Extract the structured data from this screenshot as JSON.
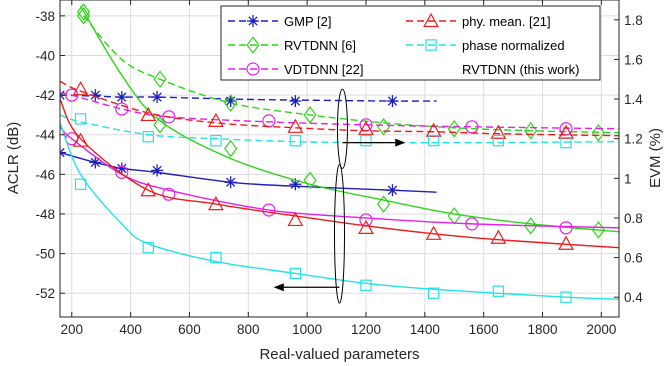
{
  "chart_data": {
    "type": "line",
    "xlabel": "Real-valued parameters",
    "ylabel_left": "ACLR (dB)",
    "ylabel_right": "EVM (%)",
    "xlim": [
      160,
      2060
    ],
    "ylim_left": [
      -53.2,
      -37.2
    ],
    "ylim_right": [
      0.3,
      1.9
    ],
    "xticks": [
      200,
      400,
      600,
      800,
      1000,
      1200,
      1400,
      1600,
      1800,
      2000
    ],
    "yticks_left": [
      -38,
      -40,
      -42,
      -44,
      -46,
      -48,
      -50,
      -52
    ],
    "yticks_right": [
      1.8,
      1.6,
      1.4,
      1.2,
      1,
      0.8,
      0.6,
      0.4
    ],
    "grid": true,
    "legend_position": "top-right",
    "series": [
      {
        "name": "GMP  [2]",
        "color": "#1f1fbf",
        "marker": "asterisk",
        "aclr_solid": [
          [
            160,
            -44.9
          ],
          [
            280,
            -45.4
          ],
          [
            370,
            -45.7
          ],
          [
            490,
            -45.9
          ],
          [
            740,
            -46.4
          ],
          [
            960,
            -46.6
          ],
          [
            1290,
            -46.8
          ],
          [
            1440,
            -46.9
          ]
        ],
        "aclr_markers": [
          [
            160,
            -44.9
          ],
          [
            280,
            -45.4
          ],
          [
            370,
            -45.7
          ],
          [
            490,
            -45.8
          ],
          [
            740,
            -46.4
          ],
          [
            960,
            -46.5
          ],
          [
            1290,
            -46.8
          ]
        ],
        "evm_dashed": [
          [
            160,
            1.42
          ],
          [
            280,
            1.415
          ],
          [
            370,
            1.41
          ],
          [
            490,
            1.41
          ],
          [
            740,
            1.4
          ],
          [
            960,
            1.395
          ],
          [
            1290,
            1.39
          ],
          [
            1440,
            1.39
          ]
        ],
        "evm_markers": [
          [
            160,
            1.42
          ],
          [
            280,
            1.42
          ],
          [
            370,
            1.41
          ],
          [
            490,
            1.41
          ],
          [
            740,
            1.39
          ],
          [
            960,
            1.39
          ],
          [
            1290,
            1.39
          ]
        ]
      },
      {
        "name": "RVTDNN  [6]",
        "color": "#2fd41a",
        "marker": "diamond",
        "aclr_solid": [
          [
            230,
            -37.5
          ],
          [
            370,
            -41.0
          ],
          [
            500,
            -43.3
          ],
          [
            740,
            -45.2
          ],
          [
            1010,
            -46.5
          ],
          [
            1260,
            -47.3
          ],
          [
            1500,
            -48.0
          ],
          [
            1760,
            -48.5
          ],
          [
            2060,
            -48.9
          ]
        ],
        "aclr_markers": [
          [
            240,
            -37.8
          ],
          [
            500,
            -43.5
          ],
          [
            740,
            -44.7
          ],
          [
            1010,
            -46.3
          ],
          [
            1260,
            -47.5
          ],
          [
            1500,
            -48.1
          ],
          [
            1760,
            -48.6
          ],
          [
            1990,
            -48.8
          ]
        ],
        "evm_dashed": [
          [
            240,
            1.82
          ],
          [
            370,
            1.6
          ],
          [
            500,
            1.5
          ],
          [
            740,
            1.38
          ],
          [
            1010,
            1.32
          ],
          [
            1260,
            1.28
          ],
          [
            1500,
            1.255
          ],
          [
            1760,
            1.24
          ],
          [
            2060,
            1.23
          ]
        ],
        "evm_markers": [
          [
            240,
            1.82
          ],
          [
            500,
            1.5
          ],
          [
            740,
            1.38
          ],
          [
            1010,
            1.32
          ],
          [
            1260,
            1.26
          ],
          [
            1500,
            1.25
          ],
          [
            1760,
            1.24
          ],
          [
            1990,
            1.23
          ]
        ]
      },
      {
        "name": "VDTDNN  [22]",
        "color": "#e620e6",
        "marker": "circle",
        "aclr_solid": [
          [
            160,
            -43.6
          ],
          [
            200,
            -44.2
          ],
          [
            370,
            -46.0
          ],
          [
            530,
            -46.8
          ],
          [
            870,
            -47.8
          ],
          [
            1200,
            -48.2
          ],
          [
            1560,
            -48.5
          ],
          [
            2060,
            -48.7
          ]
        ],
        "aclr_markers": [
          [
            200,
            -44.2
          ],
          [
            370,
            -45.9
          ],
          [
            530,
            -47.0
          ],
          [
            870,
            -47.8
          ],
          [
            1200,
            -48.3
          ],
          [
            1560,
            -48.5
          ],
          [
            1880,
            -48.7
          ]
        ],
        "evm_dashed": [
          [
            160,
            1.43
          ],
          [
            200,
            1.42
          ],
          [
            370,
            1.35
          ],
          [
            530,
            1.31
          ],
          [
            870,
            1.285
          ],
          [
            1200,
            1.27
          ],
          [
            1560,
            1.26
          ],
          [
            2060,
            1.25
          ]
        ],
        "evm_markers": [
          [
            200,
            1.42
          ],
          [
            370,
            1.35
          ],
          [
            530,
            1.31
          ],
          [
            870,
            1.29
          ],
          [
            1200,
            1.27
          ],
          [
            1560,
            1.26
          ],
          [
            1880,
            1.25
          ]
        ]
      },
      {
        "name": "phy. mean. [21]",
        "color": "#ee1c1c",
        "marker": "triangle",
        "aclr_solid": [
          [
            160,
            -42.2
          ],
          [
            230,
            -44.2
          ],
          [
            460,
            -46.8
          ],
          [
            690,
            -47.5
          ],
          [
            960,
            -48.1
          ],
          [
            1200,
            -48.6
          ],
          [
            1430,
            -49.0
          ],
          [
            1650,
            -49.3
          ],
          [
            2060,
            -49.7
          ]
        ],
        "aclr_markers": [
          [
            230,
            -44.3
          ],
          [
            460,
            -46.8
          ],
          [
            690,
            -47.5
          ],
          [
            960,
            -48.3
          ],
          [
            1200,
            -48.7
          ],
          [
            1430,
            -49.0
          ],
          [
            1650,
            -49.2
          ],
          [
            1880,
            -49.5
          ]
        ],
        "evm_dashed": [
          [
            160,
            1.49
          ],
          [
            230,
            1.44
          ],
          [
            460,
            1.33
          ],
          [
            690,
            1.28
          ],
          [
            960,
            1.255
          ],
          [
            1200,
            1.24
          ],
          [
            1430,
            1.235
          ],
          [
            1650,
            1.225
          ],
          [
            2060,
            1.215
          ]
        ],
        "evm_markers": [
          [
            230,
            1.45
          ],
          [
            460,
            1.32
          ],
          [
            690,
            1.29
          ],
          [
            960,
            1.26
          ],
          [
            1200,
            1.25
          ],
          [
            1430,
            1.24
          ],
          [
            1650,
            1.23
          ],
          [
            1880,
            1.23
          ]
        ]
      },
      {
        "name": "phase normalized",
        "name_line2": "RVTDNN (this work)",
        "color": "#26e2e6",
        "marker": "square",
        "aclr_solid": [
          [
            160,
            -43.4
          ],
          [
            230,
            -46.0
          ],
          [
            370,
            -48.5
          ],
          [
            460,
            -49.5
          ],
          [
            690,
            -50.4
          ],
          [
            960,
            -51.0
          ],
          [
            1200,
            -51.5
          ],
          [
            1430,
            -51.8
          ],
          [
            1880,
            -52.2
          ],
          [
            2060,
            -52.3
          ]
        ],
        "aclr_markers": [
          [
            230,
            -46.5
          ],
          [
            460,
            -49.7
          ],
          [
            690,
            -50.2
          ],
          [
            960,
            -51.0
          ],
          [
            1200,
            -51.6
          ],
          [
            1430,
            -52.0
          ],
          [
            1650,
            -51.9
          ],
          [
            1880,
            -52.2
          ]
        ],
        "evm_dashed": [
          [
            160,
            1.32
          ],
          [
            230,
            1.285
          ],
          [
            460,
            1.22
          ],
          [
            690,
            1.2
          ],
          [
            960,
            1.185
          ],
          [
            1200,
            1.18
          ],
          [
            1430,
            1.18
          ],
          [
            1650,
            1.18
          ],
          [
            2060,
            1.185
          ]
        ],
        "evm_markers": [
          [
            230,
            1.3
          ],
          [
            460,
            1.21
          ],
          [
            690,
            1.19
          ],
          [
            960,
            1.19
          ],
          [
            1200,
            1.19
          ],
          [
            1430,
            1.19
          ],
          [
            1650,
            1.19
          ],
          [
            1880,
            1.18
          ]
        ]
      }
    ],
    "annotations": {
      "evm_arrow": {
        "ellipse_x": 1120,
        "ellipse_y_left": [
          -41.7,
          -45.7
        ],
        "arrow_to_x": 1330,
        "arrow_y": -44.4,
        "direction": "right"
      },
      "aclr_arrow": {
        "ellipse_x": 1110,
        "ellipse_y_left": [
          -45.5,
          -52.5
        ],
        "arrow_to_x": 890,
        "arrow_y": -51.7,
        "direction": "left"
      }
    }
  }
}
